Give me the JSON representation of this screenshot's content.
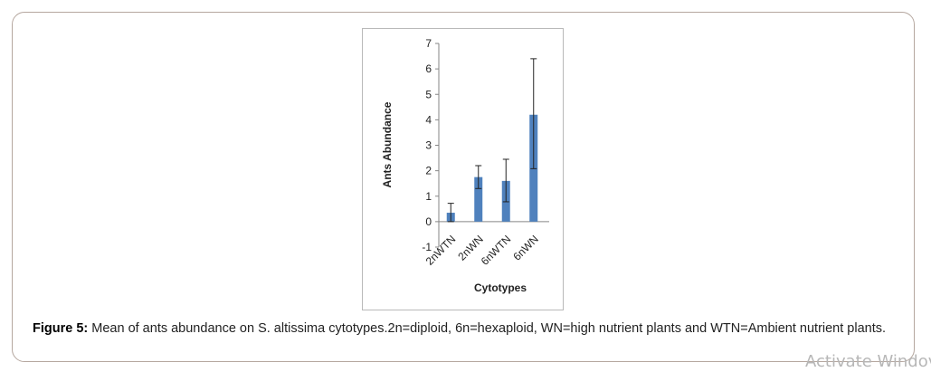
{
  "chart_data": {
    "type": "bar",
    "categories": [
      "2nWTN",
      "2nWN",
      "6nWTN",
      "6nWN"
    ],
    "values": [
      0.35,
      1.75,
      1.6,
      4.2
    ],
    "error_low": [
      0.0,
      1.3,
      0.78,
      2.08
    ],
    "error_high": [
      0.72,
      2.2,
      2.45,
      6.4
    ],
    "ylim": [
      -1,
      7
    ],
    "yticks": [
      "-1",
      "0",
      "1",
      "2",
      "3",
      "4",
      "5",
      "6",
      "7"
    ],
    "xlabel": "Cytotypes",
    "ylabel": "Ants Abundance",
    "grid": false,
    "bar_color": "#4f81bd"
  },
  "caption": {
    "label": "Figure 5:",
    "text": " Mean of ants abundance on S. altissima cytotypes.2n=diploid, 6n=hexaploid, WN=high nutrient plants and WTN=Ambient nutrient plants."
  },
  "watermark": "Activate Windov"
}
